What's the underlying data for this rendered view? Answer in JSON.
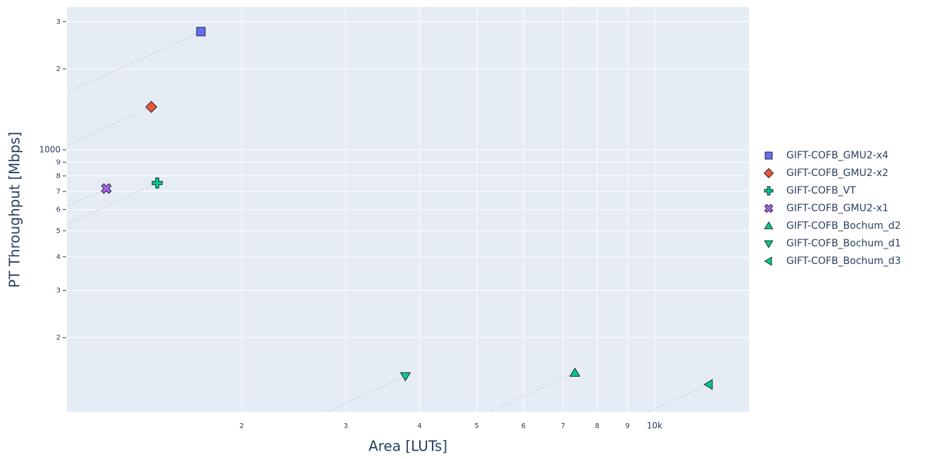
{
  "chart_data": {
    "type": "scatter",
    "x_label": "Area [LUTs]",
    "y_label": "PT Throughput [Mbps]",
    "xscale": "log",
    "yscale": "log",
    "grid": true,
    "legend": "right",
    "xlim": [
      1012,
      14450
    ],
    "ylim": [
      106,
      3400
    ],
    "xticks": [
      {
        "value": 2000,
        "label": "2"
      },
      {
        "value": 3000,
        "label": "3"
      },
      {
        "value": 4000,
        "label": "4"
      },
      {
        "value": 5000,
        "label": "5"
      },
      {
        "value": 6000,
        "label": "6"
      },
      {
        "value": 7000,
        "label": "7"
      },
      {
        "value": 8000,
        "label": "8"
      },
      {
        "value": 9000,
        "label": "9"
      },
      {
        "value": 10000,
        "label": "10k"
      }
    ],
    "yticks": [
      {
        "value": 200,
        "label": "2"
      },
      {
        "value": 300,
        "label": "3"
      },
      {
        "value": 400,
        "label": "4"
      },
      {
        "value": 500,
        "label": "5"
      },
      {
        "value": 600,
        "label": "6"
      },
      {
        "value": 700,
        "label": "7"
      },
      {
        "value": 800,
        "label": "8"
      },
      {
        "value": 900,
        "label": "9"
      },
      1000,
      {
        "value": 2000,
        "label": "2"
      },
      {
        "value": 3000,
        "label": "3"
      }
    ],
    "series": [
      {
        "name": "GIFT-COFB_GMU2-x4",
        "color": "#636efa",
        "symbol": "square",
        "x": [
          1706
        ],
        "y": [
          2754
        ]
      },
      {
        "name": "GIFT-COFB_GMU2-x2",
        "color": "#ef553b",
        "symbol": "diamond",
        "x": [
          1406
        ],
        "y": [
          1445
        ]
      },
      {
        "name": "GIFT-COFB_VT",
        "color": "#00cc96",
        "symbol": "cross",
        "x": [
          1439
        ],
        "y": [
          753
        ]
      },
      {
        "name": "GIFT-COFB_GMU2-x1",
        "color": "#ab63fa",
        "symbol": "x",
        "x": [
          1180
        ],
        "y": [
          718
        ]
      },
      {
        "name": "GIFT-COFB_Bochum_d2",
        "color": "#00cc96",
        "symbol": "triangle-up",
        "x": [
          7330
        ],
        "y": [
          148
        ]
      },
      {
        "name": "GIFT-COFB_Bochum_d1",
        "color": "#00cc96",
        "symbol": "triangle-down",
        "x": [
          3786
        ],
        "y": [
          144
        ]
      },
      {
        "name": "GIFT-COFB_Bochum_d3",
        "color": "#00cc96",
        "symbol": "triangle-left",
        "x": [
          12360
        ],
        "y": [
          134
        ]
      }
    ]
  }
}
